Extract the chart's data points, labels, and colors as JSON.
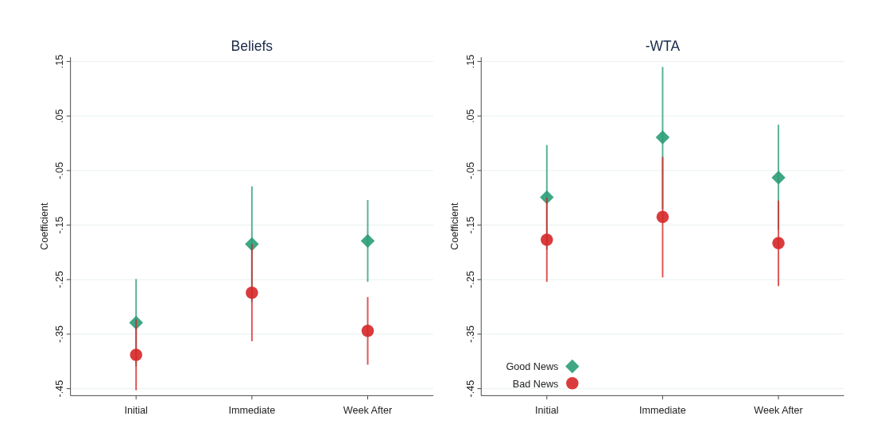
{
  "chart_data": [
    {
      "type": "scatter",
      "title": "Beliefs",
      "ylabel": "Coefficient",
      "categories": [
        "Initial",
        "Immediate",
        "Week After"
      ],
      "ylim": [
        -0.46,
        0.155
      ],
      "yticks": [
        {
          "value": 0.15,
          "label": ".15"
        },
        {
          "value": 0.05,
          "label": ".05"
        },
        {
          "value": -0.05,
          "label": "-.05"
        },
        {
          "value": -0.15,
          "label": "-.15"
        },
        {
          "value": -0.25,
          "label": "-.25"
        },
        {
          "value": -0.35,
          "label": "-.35"
        },
        {
          "value": -0.45,
          "label": "-.45"
        }
      ],
      "grid": "y",
      "legend": false,
      "series": [
        {
          "color": "#2a9d78",
          "marker": "diamond",
          "values": [
            -0.329,
            -0.185,
            -0.179
          ],
          "errors": [
            [
              -0.409,
              -0.249
            ],
            [
              -0.291,
              -0.079
            ],
            [
              -0.254,
              -0.104
            ]
          ]
        },
        {
          "color": "#d62728",
          "marker": "circle",
          "values": [
            -0.388,
            -0.274,
            -0.344
          ],
          "errors": [
            [
              -0.453,
              -0.323
            ],
            [
              -0.363,
              -0.185
            ],
            [
              -0.406,
              -0.282
            ]
          ]
        }
      ]
    },
    {
      "type": "scatter",
      "title": "-WTA",
      "ylabel": "Coefficient",
      "categories": [
        "Initial",
        "Immediate",
        "Week After"
      ],
      "ylim": [
        -0.46,
        0.155
      ],
      "yticks": [
        {
          "value": 0.15,
          "label": ".15"
        },
        {
          "value": 0.05,
          "label": ".05"
        },
        {
          "value": -0.05,
          "label": "-.05"
        },
        {
          "value": -0.15,
          "label": "-.15"
        },
        {
          "value": -0.25,
          "label": "-.25"
        },
        {
          "value": -0.35,
          "label": "-.35"
        },
        {
          "value": -0.45,
          "label": "-.45"
        }
      ],
      "grid": "y",
      "legend": "bottom left",
      "series": [
        {
          "name": "Good News",
          "color": "#2a9d78",
          "marker": "diamond",
          "values": [
            -0.099,
            0.011,
            -0.063
          ],
          "errors": [
            [
              -0.195,
              -0.003
            ],
            [
              -0.121,
              0.14
            ],
            [
              -0.159,
              0.034
            ]
          ]
        },
        {
          "name": "Bad News",
          "color": "#d62728",
          "marker": "circle",
          "values": [
            -0.177,
            -0.135,
            -0.183
          ],
          "errors": [
            [
              -0.254,
              -0.1
            ],
            [
              -0.246,
              -0.025
            ],
            [
              -0.262,
              -0.105
            ]
          ]
        }
      ]
    }
  ]
}
